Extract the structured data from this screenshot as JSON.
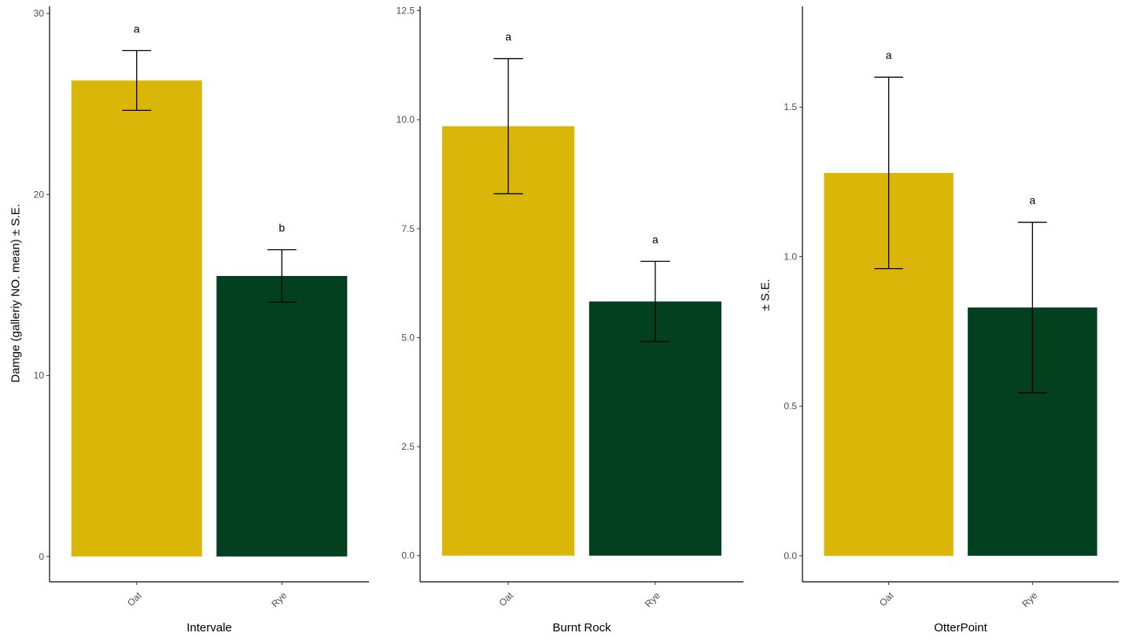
{
  "chart_data": [
    {
      "type": "bar",
      "categories": [
        "Oat",
        "Rye"
      ],
      "values": [
        26.3,
        15.5
      ],
      "errors": [
        1.65,
        1.45
      ],
      "significance": [
        "a",
        "b"
      ],
      "xlabel": "Intervale",
      "ylabel": "Damge (galleriy NO. mean) ± S.E.",
      "ylim": [
        -1.4,
        30.4
      ],
      "yticks": [
        "0",
        "10",
        "20",
        "30"
      ],
      "ytick_values": [
        0,
        10,
        20,
        30
      ],
      "colors": [
        "#D9B607",
        "#02401F"
      ],
      "grid": false
    },
    {
      "type": "bar",
      "categories": [
        "Oat",
        "Rye"
      ],
      "values": [
        9.85,
        5.83
      ],
      "errors": [
        1.55,
        0.92
      ],
      "significance": [
        "a",
        "a"
      ],
      "xlabel": "Burnt Rock",
      "ylabel": "",
      "ylim": [
        -0.6,
        12.6
      ],
      "yticks": [
        "0.0",
        "2.5",
        "5.0",
        "7.5",
        "10.0",
        "12.5"
      ],
      "ytick_values": [
        0,
        2.5,
        5,
        7.5,
        10,
        12.5
      ],
      "colors": [
        "#D9B607",
        "#02401F"
      ],
      "grid": false
    },
    {
      "type": "bar",
      "categories": [
        "Oat",
        "Rye"
      ],
      "values": [
        1.28,
        0.83
      ],
      "errors": [
        0.32,
        0.285
      ],
      "significance": [
        "a",
        "a"
      ],
      "xlabel": "OtterPoint",
      "ylabel": "± S.E.",
      "ylim": [
        -0.087,
        1.837
      ],
      "yticks": [
        "0.0",
        "0.5",
        "1.0",
        "1.5"
      ],
      "ytick_values": [
        0,
        0.5,
        1.0,
        1.5
      ],
      "colors": [
        "#D9B607",
        "#02401F"
      ],
      "grid": false
    }
  ]
}
